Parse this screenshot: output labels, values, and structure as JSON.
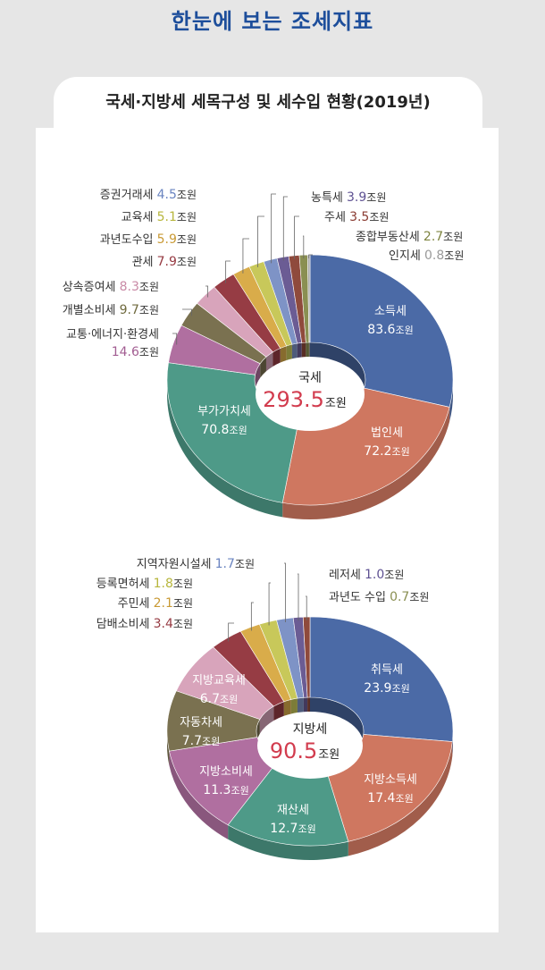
{
  "page": {
    "title": "한눈에 보는 조세지표",
    "subtitle": "국세·지방세 세목구성 및 세수입 현황(2019년)"
  },
  "colors": {
    "title": "#1d4e9b",
    "total_value": "#d23c4e"
  },
  "chart_data": [
    {
      "type": "pie",
      "donut": true,
      "center_label": "국세",
      "total": "293.5",
      "unit": "조원",
      "slices": [
        {
          "name": "소득세",
          "value": 83.6,
          "color": "#4b6aa6",
          "label_pos": "inside"
        },
        {
          "name": "법인세",
          "value": 72.2,
          "color": "#cf7760",
          "label_pos": "inside"
        },
        {
          "name": "부가가치세",
          "value": 70.8,
          "color": "#4e9a88",
          "label_pos": "inside"
        },
        {
          "name": "교통·에너지·환경세",
          "value": 14.6,
          "color": "#b06fa0",
          "label_pos": "outside",
          "label_color": "#a25d92",
          "two_line": true
        },
        {
          "name": "개별소비세",
          "value": 9.7,
          "color": "#7a7150",
          "label_pos": "outside",
          "label_color": "#6f6a3e"
        },
        {
          "name": "상속증여세",
          "value": 8.3,
          "color": "#d8a4bb",
          "label_pos": "outside",
          "label_color": "#c98aa6"
        },
        {
          "name": "관세",
          "value": 7.9,
          "color": "#963c44",
          "label_pos": "outside",
          "label_color": "#963a42"
        },
        {
          "name": "과년도수입",
          "value": 5.9,
          "color": "#d9ac4a",
          "label_pos": "outside",
          "label_color": "#c99a35"
        },
        {
          "name": "교육세",
          "value": 5.1,
          "color": "#c8c85a",
          "label_pos": "outside",
          "label_color": "#b7b63c"
        },
        {
          "name": "증권거래세",
          "value": 4.5,
          "color": "#7e93c6",
          "label_pos": "outside",
          "label_color": "#6a84c0"
        },
        {
          "name": "농특세",
          "value": 3.9,
          "color": "#6b5c94",
          "label_pos": "outside",
          "label_color": "#5e5192"
        },
        {
          "name": "주세",
          "value": 3.5,
          "color": "#8f4a3c",
          "label_pos": "outside",
          "label_color": "#8a3b32"
        },
        {
          "name": "종합부동산세",
          "value": 2.7,
          "color": "#8a8f52",
          "label_pos": "outside",
          "label_color": "#7e8440"
        },
        {
          "name": "인지세",
          "value": 0.8,
          "color": "#a9a9a9",
          "label_pos": "outside",
          "label_color": "#9a9a9a"
        }
      ]
    },
    {
      "type": "pie",
      "donut": true,
      "center_label": "지방세",
      "total": "90.5",
      "unit": "조원",
      "slices": [
        {
          "name": "취득세",
          "value": 23.9,
          "color": "#4b6aa6",
          "label_pos": "inside"
        },
        {
          "name": "지방소득세",
          "value": 17.4,
          "color": "#cf7760",
          "label_pos": "inside"
        },
        {
          "name": "재산세",
          "value": 12.7,
          "color": "#4e9a88",
          "label_pos": "inside"
        },
        {
          "name": "지방소비세",
          "value": 11.3,
          "color": "#b06fa0",
          "label_pos": "inside"
        },
        {
          "name": "자동차세",
          "value": 7.7,
          "color": "#7a7150",
          "label_pos": "inside"
        },
        {
          "name": "지방교육세",
          "value": 6.7,
          "color": "#d8a4bb",
          "label_pos": "inside"
        },
        {
          "name": "담배소비세",
          "value": 3.4,
          "color": "#963c44",
          "label_pos": "outside",
          "label_color": "#963a42"
        },
        {
          "name": "주민세",
          "value": 2.1,
          "color": "#d9ac4a",
          "label_pos": "outside",
          "label_color": "#c99a35"
        },
        {
          "name": "등록면허세",
          "value": 1.8,
          "color": "#c8c85a",
          "label_pos": "outside",
          "label_color": "#b7b63c"
        },
        {
          "name": "지역자원시설세",
          "value": 1.7,
          "color": "#7e93c6",
          "label_pos": "outside",
          "label_color": "#6a84c0"
        },
        {
          "name": "레저세",
          "value": 1.0,
          "color": "#6b5c94",
          "label_pos": "outside",
          "label_color": "#5e5192"
        },
        {
          "name": "과년도 수입",
          "value": 0.7,
          "color": "#8f4a3c",
          "label_pos": "outside",
          "label_color": "#8a8f52"
        }
      ]
    }
  ]
}
